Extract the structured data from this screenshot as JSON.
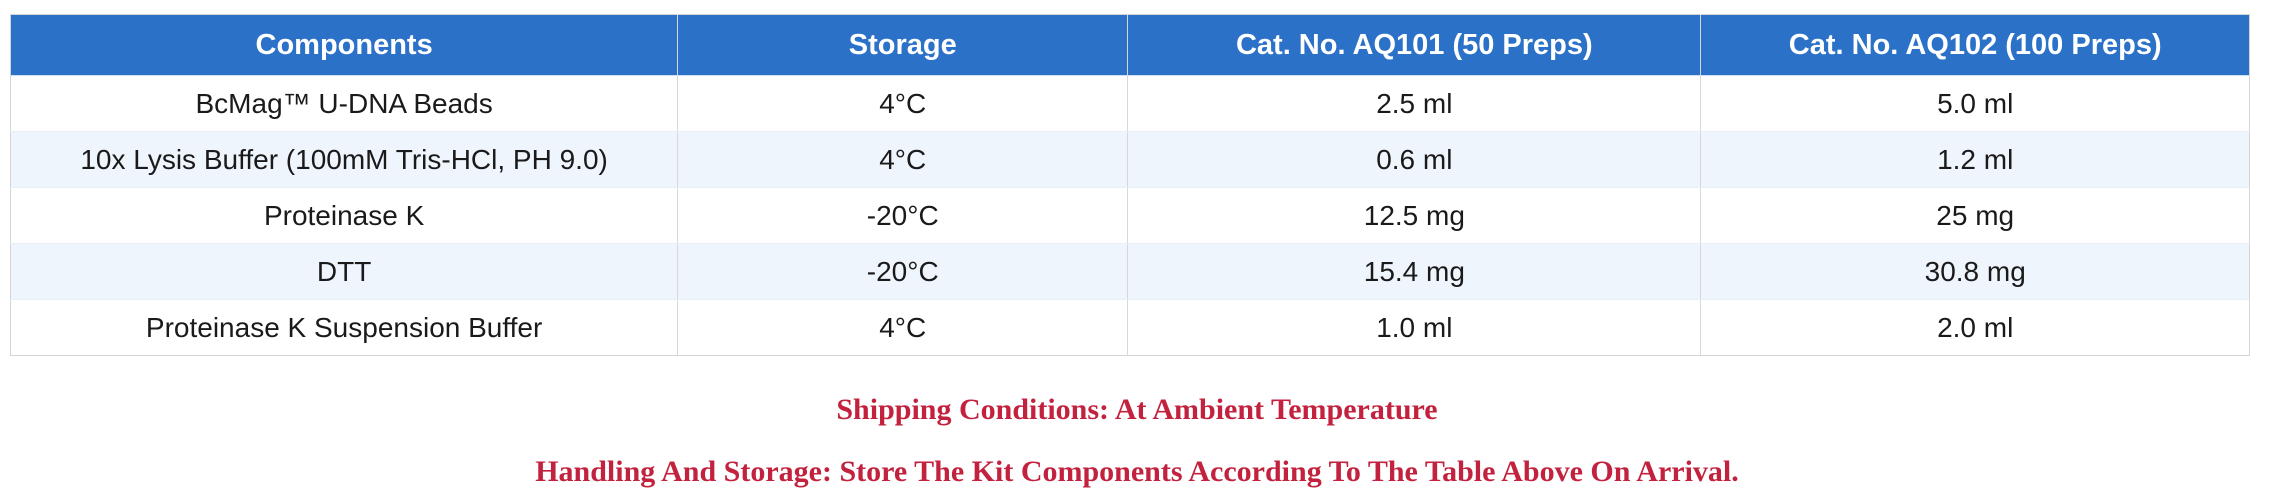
{
  "table": {
    "headers": [
      "Components",
      "Storage",
      "Cat. No. AQ101 (50 Preps)",
      "Cat. No. AQ102 (100 Preps)"
    ],
    "rows": [
      [
        "BcMag™ U-DNA Beads",
        "4°C",
        "2.5 ml",
        "5.0 ml"
      ],
      [
        "10x Lysis Buffer (100mM Tris-HCl, PH 9.0)",
        "4°C",
        "0.6 ml",
        "1.2 ml"
      ],
      [
        "Proteinase K",
        "-20°C",
        "12.5 mg",
        "25 mg"
      ],
      [
        "DTT",
        "-20°C",
        "15.4 mg",
        "30.8 mg"
      ],
      [
        "Proteinase K Suspension Buffer",
        "4°C",
        "1.0 ml",
        "2.0 ml"
      ]
    ]
  },
  "notes": {
    "shipping": "Shipping Conditions: At Ambient Temperature",
    "handling": "Handling And Storage: Store The Kit Components According To The Table Above On Arrival."
  },
  "colors": {
    "header_bg": "#2b71c8",
    "header_text": "#ffffff",
    "row_alt_bg": "#eff5fd",
    "note_text": "#c2223e",
    "border": "#d4d4d4"
  }
}
